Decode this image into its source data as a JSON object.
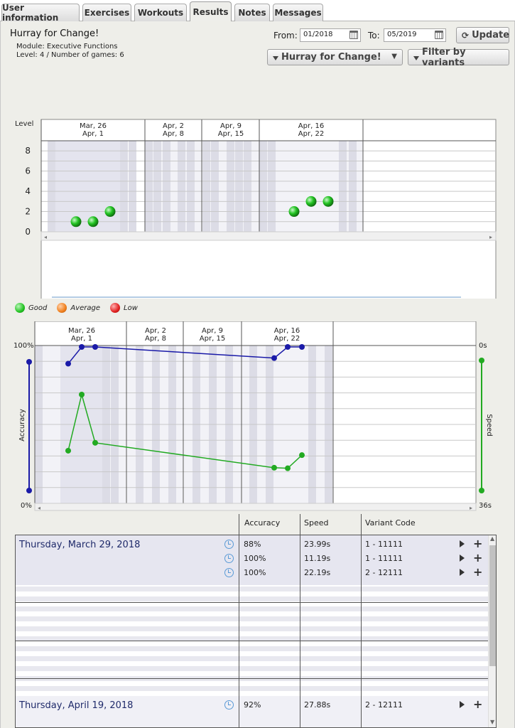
{
  "tabs": [
    {
      "label": "User information",
      "active": false
    },
    {
      "label": "Exercises",
      "active": false
    },
    {
      "label": "Workouts",
      "active": false
    },
    {
      "label": "Results",
      "active": true
    },
    {
      "label": "Notes",
      "active": false
    },
    {
      "label": "Messages",
      "active": false
    }
  ],
  "header": {
    "title": "Hurray for Change!",
    "module": "Module: Executive Functions",
    "level_games": "Level: 4 / Number of games: 6",
    "from_label": "From:",
    "from_value": "01/2018",
    "to_label": "To:",
    "to_value": "05/2019",
    "update_label": "Update",
    "exercise_filter": "Hurray for Change!",
    "variant_filter": "Filter by variants"
  },
  "colors": {
    "good": "#22c322",
    "average": "#f07f1c",
    "low": "#e01f1f",
    "accuracy": "#1a1aa8",
    "speed": "#22aa22"
  },
  "week_labels": [
    {
      "top": "Mar, 26",
      "bottom": "Apr, 1"
    },
    {
      "top": "Apr, 2",
      "bottom": "Apr, 8"
    },
    {
      "top": "Apr, 9",
      "bottom": "Apr, 15"
    },
    {
      "top": "Apr, 16",
      "bottom": "Apr, 22"
    }
  ],
  "chart_data": [
    {
      "type": "scatter",
      "ylabel": "Level",
      "ylim": [
        0,
        9
      ],
      "yticks": [
        "0",
        "2",
        "4",
        "6",
        "8"
      ],
      "points": [
        {
          "date": "2018-03-28",
          "level": 1,
          "rating": "Good"
        },
        {
          "date": "2018-03-29",
          "level": 1,
          "rating": "Good"
        },
        {
          "date": "2018-03-30",
          "level": 2,
          "rating": "Good"
        },
        {
          "date": "2018-04-18",
          "level": 2,
          "rating": "Good"
        },
        {
          "date": "2018-04-19",
          "level": 3,
          "rating": "Good"
        },
        {
          "date": "2018-04-20",
          "level": 3,
          "rating": "Good"
        }
      ],
      "legend": [
        "Good",
        "Average",
        "Low"
      ]
    },
    {
      "type": "line",
      "left_axis": {
        "label": "Accuracy",
        "top": "100%",
        "bottom": "0%"
      },
      "right_axis": {
        "label": "Speed",
        "top": "0s",
        "bottom": "36s"
      },
      "series": [
        {
          "name": "Accuracy",
          "points": [
            {
              "date": "2018-03-28",
              "value": 88
            },
            {
              "date": "2018-03-29",
              "value": 100
            },
            {
              "date": "2018-03-30",
              "value": 100
            },
            {
              "date": "2018-04-18",
              "value": 92
            },
            {
              "date": "2018-04-19",
              "value": 100
            },
            {
              "date": "2018-04-20",
              "value": 100
            }
          ]
        },
        {
          "name": "Speed",
          "points": [
            {
              "date": "2018-03-28",
              "value": 23.99
            },
            {
              "date": "2018-03-29",
              "value": 11.19
            },
            {
              "date": "2018-03-30",
              "value": 22.19
            },
            {
              "date": "2018-04-18",
              "value": 27.88
            },
            {
              "date": "2018-04-19",
              "value": 28
            },
            {
              "date": "2018-04-20",
              "value": 25
            }
          ]
        }
      ]
    }
  ],
  "table": {
    "headers": [
      "Accuracy",
      "Speed",
      "Variant Code"
    ],
    "groups": [
      {
        "date": "Thursday, March 29, 2018",
        "rows": [
          {
            "accuracy": "88%",
            "speed": "23.99s",
            "variant": "1 - 11111"
          },
          {
            "accuracy": "100%",
            "speed": "11.19s",
            "variant": "1 - 11111"
          },
          {
            "accuracy": "100%",
            "speed": "22.19s",
            "variant": "2 - 12111"
          }
        ]
      },
      {
        "date": "Thursday, April 19, 2018",
        "rows": [
          {
            "accuracy": "92%",
            "speed": "27.88s",
            "variant": "2 - 12111"
          }
        ]
      }
    ]
  }
}
